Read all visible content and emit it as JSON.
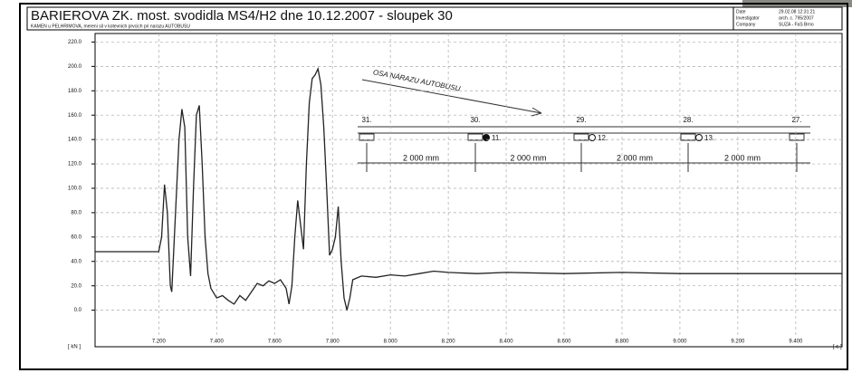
{
  "chart_data": {
    "type": "line",
    "title": "BARIEROVA ZK. most. svodidla MS4/H2 dne 10.12.2007 - sloupek 30",
    "subtitle": "KAMEN u PELHRIMOVA, mereni sil v kotevnich prvcich pri narazu AUTOBUSU",
    "info": [
      {
        "label": "Date",
        "value": "29.02.08 12:31:21"
      },
      {
        "label": "Investigator",
        "value": "arch. c. 795/2007"
      },
      {
        "label": "Company",
        "value": "SUZA - FaS Brno"
      }
    ],
    "y_label": "[ kN ]",
    "x_label": "[ s ]",
    "color": "#222222",
    "grid": true,
    "xlim": [
      6.98,
      9.56
    ],
    "ylim": [
      -30,
      227
    ],
    "xticks": [
      {
        "value": 7.2,
        "label": "7.200"
      },
      {
        "value": 7.4,
        "label": "7.400"
      },
      {
        "value": 7.6,
        "label": "7.600"
      },
      {
        "value": 7.8,
        "label": "7.800"
      },
      {
        "value": 8.0,
        "label": "8.000"
      },
      {
        "value": 8.2,
        "label": "8.200"
      },
      {
        "value": 8.4,
        "label": "8.400"
      },
      {
        "value": 8.6,
        "label": "8.600"
      },
      {
        "value": 8.8,
        "label": "8.800"
      },
      {
        "value": 9.0,
        "label": "9.000"
      },
      {
        "value": 9.2,
        "label": "9.200"
      },
      {
        "value": 9.4,
        "label": "9.400"
      }
    ],
    "yticks": [
      {
        "value": 0,
        "label": "0.0"
      },
      {
        "value": 20,
        "label": "20.0"
      },
      {
        "value": 40,
        "label": "40.0"
      },
      {
        "value": 60,
        "label": "60.0"
      },
      {
        "value": 80,
        "label": "80.0"
      },
      {
        "value": 100,
        "label": "100.0"
      },
      {
        "value": 120,
        "label": "120.0"
      },
      {
        "value": 140,
        "label": "140.0"
      },
      {
        "value": 160,
        "label": "160.0"
      },
      {
        "value": 180,
        "label": "180.0"
      },
      {
        "value": 200,
        "label": "200.0"
      },
      {
        "value": 220,
        "label": "220.0"
      }
    ],
    "x": [
      6.98,
      7.2,
      7.21,
      7.22,
      7.23,
      7.24,
      7.245,
      7.25,
      7.27,
      7.28,
      7.29,
      7.3,
      7.31,
      7.32,
      7.33,
      7.34,
      7.35,
      7.36,
      7.37,
      7.38,
      7.4,
      7.42,
      7.44,
      7.46,
      7.48,
      7.5,
      7.52,
      7.54,
      7.56,
      7.58,
      7.6,
      7.62,
      7.64,
      7.65,
      7.66,
      7.67,
      7.68,
      7.69,
      7.7,
      7.71,
      7.72,
      7.73,
      7.74,
      7.75,
      7.76,
      7.77,
      7.78,
      7.79,
      7.8,
      7.81,
      7.82,
      7.83,
      7.84,
      7.85,
      7.86,
      7.87,
      7.9,
      7.95,
      8.0,
      8.05,
      8.1,
      8.15,
      8.2,
      8.3,
      8.4,
      8.6,
      8.8,
      9.0,
      9.2,
      9.4,
      9.56
    ],
    "values": [
      48,
      48,
      60,
      103,
      80,
      20,
      15,
      40,
      140,
      165,
      150,
      60,
      28,
      100,
      160,
      168,
      120,
      60,
      30,
      18,
      10,
      12,
      8,
      5,
      12,
      8,
      15,
      22,
      20,
      24,
      22,
      25,
      18,
      5,
      20,
      60,
      90,
      70,
      50,
      120,
      170,
      190,
      193,
      198,
      185,
      150,
      100,
      45,
      50,
      60,
      85,
      40,
      10,
      0,
      10,
      25,
      28,
      27,
      29,
      28,
      30,
      32,
      31,
      30,
      31,
      30,
      31,
      30,
      30,
      30,
      30
    ],
    "annotations": {
      "impact_axis": "OSA NÁRAZU AUTOBUSU",
      "posts": [
        "31.",
        "30.",
        "29.",
        "28.",
        "27."
      ],
      "sensors": [
        "11.",
        "12.",
        "13."
      ],
      "spacing": [
        "2 000 mm",
        "2 000 mm",
        "2 000 mm",
        "2 000 mm"
      ]
    }
  }
}
